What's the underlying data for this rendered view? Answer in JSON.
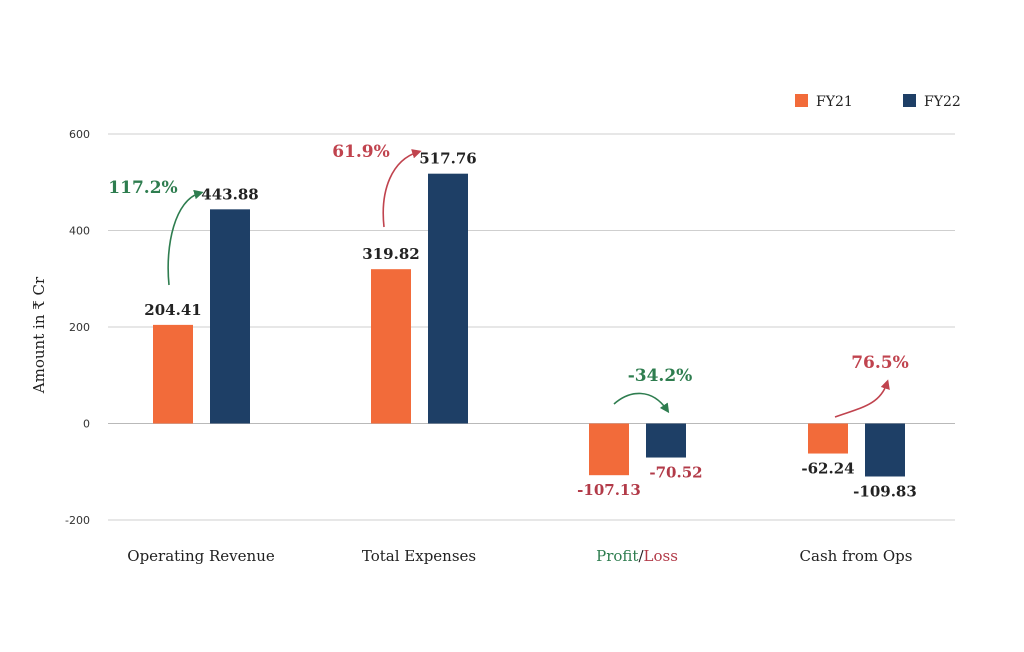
{
  "chart_data": {
    "type": "bar",
    "title": "",
    "xlabel": "",
    "ylabel": "Amount in ₹ Cr",
    "ylim": [
      -200,
      600
    ],
    "yticks": [
      -200,
      0,
      200,
      400,
      600
    ],
    "grid": true,
    "legend_position": "top-right",
    "categories": [
      "Operating Revenue",
      "Total Expenses",
      "Profit/Loss",
      "Cash from Ops"
    ],
    "series": [
      {
        "name": "FY21",
        "color": "#F26B3A",
        "values": [
          204.41,
          319.82,
          -107.13,
          -62.24
        ],
        "labels": [
          "204.41",
          "319.82",
          "-107.13",
          "-62.24"
        ]
      },
      {
        "name": "FY22",
        "color": "#1E3F66",
        "values": [
          443.88,
          517.76,
          -70.52,
          -109.83
        ],
        "labels": [
          "443.88",
          "517.76",
          "-70.52",
          "-109.83"
        ]
      }
    ],
    "category_label_colors": {
      "Profit": "#2E7D4F",
      "Loss": "#B23A48"
    },
    "label_colors": {
      "positive": "#222222",
      "negative_red": "#B23A48"
    },
    "annotations": [
      {
        "category": "Operating Revenue",
        "text": "117.2%",
        "color": "#2E7D4F"
      },
      {
        "category": "Total Expenses",
        "text": "61.9%",
        "color": "#C0434E"
      },
      {
        "category": "Profit/Loss",
        "text": "-34.2%",
        "color": "#2E7D4F"
      },
      {
        "category": "Cash from Ops",
        "text": "76.5%",
        "color": "#C0434E"
      }
    ]
  }
}
